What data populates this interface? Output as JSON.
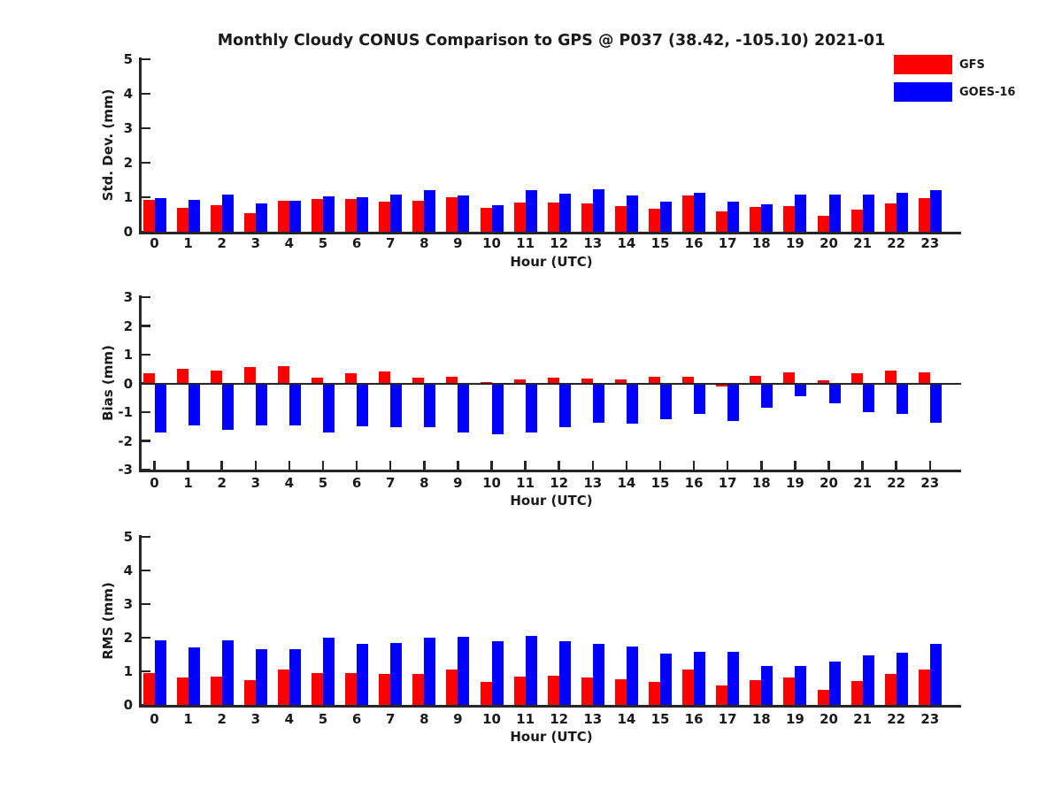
{
  "chart_data": {
    "type": "bar",
    "title": "Monthly Cloudy CONUS Comparison to GPS @ P037 (38.42, -105.10) 2021-01",
    "xlabel": "Hour (UTC)",
    "categories": [
      0,
      1,
      2,
      3,
      4,
      5,
      6,
      7,
      8,
      9,
      10,
      11,
      12,
      13,
      14,
      15,
      16,
      17,
      18,
      19,
      20,
      21,
      22,
      23
    ],
    "legend": {
      "position": "top-right",
      "entries": [
        {
          "name": "GFS",
          "color": "#ff0000"
        },
        {
          "name": "GOES-16",
          "color": "#0000ff"
        }
      ]
    },
    "panels": [
      {
        "ylabel": "Std. Dev. (mm)",
        "ylim": [
          0,
          5
        ],
        "yticks": [
          0,
          1,
          2,
          3,
          4,
          5
        ],
        "grid": false,
        "series": [
          {
            "name": "GFS",
            "color": "#ff0000",
            "values": [
              0.92,
              0.68,
              0.76,
              0.55,
              0.89,
              0.96,
              0.94,
              0.87,
              0.91,
              1.01,
              0.68,
              0.84,
              0.85,
              0.83,
              0.74,
              0.66,
              1.04,
              0.59,
              0.72,
              0.75,
              0.46,
              0.65,
              0.83,
              0.97
            ]
          },
          {
            "name": "GOES-16",
            "color": "#0000ff",
            "values": [
              0.98,
              0.93,
              1.07,
              0.81,
              0.89,
              1.03,
              1.0,
              1.08,
              1.21,
              1.05,
              0.78,
              1.21,
              1.1,
              1.22,
              1.04,
              0.88,
              1.14,
              0.88,
              0.8,
              1.08,
              1.08,
              1.07,
              1.14,
              1.2
            ]
          }
        ]
      },
      {
        "ylabel": "Bias (mm)",
        "ylim": [
          -3,
          3
        ],
        "yticks": [
          -3,
          -2,
          -1,
          0,
          1,
          2,
          3
        ],
        "grid": false,
        "zero_line": true,
        "series": [
          {
            "name": "GFS",
            "color": "#ff0000",
            "values": [
              0.35,
              0.5,
              0.45,
              0.57,
              0.6,
              0.2,
              0.35,
              0.43,
              0.2,
              0.22,
              0.04,
              0.15,
              0.19,
              0.17,
              0.15,
              0.23,
              0.22,
              -0.12,
              0.25,
              0.4,
              0.11,
              0.34,
              0.45,
              0.37
            ]
          },
          {
            "name": "GOES-16",
            "color": "#0000ff",
            "values": [
              -1.7,
              -1.45,
              -1.62,
              -1.45,
              -1.47,
              -1.72,
              -1.5,
              -1.53,
              -1.52,
              -1.7,
              -1.76,
              -1.7,
              -1.52,
              -1.36,
              -1.4,
              -1.26,
              -1.06,
              -1.31,
              -0.85,
              -0.45,
              -0.68,
              -1.0,
              -1.07,
              -1.37
            ]
          }
        ]
      },
      {
        "ylabel": "RMS (mm)",
        "ylim": [
          0,
          5
        ],
        "yticks": [
          0,
          1,
          2,
          3,
          4,
          5
        ],
        "grid": false,
        "series": [
          {
            "name": "GFS",
            "color": "#ff0000",
            "values": [
              0.96,
              0.82,
              0.84,
              0.75,
              1.04,
              0.96,
              0.96,
              0.91,
              0.91,
              1.04,
              0.68,
              0.84,
              0.86,
              0.82,
              0.76,
              0.68,
              1.04,
              0.58,
              0.75,
              0.82,
              0.45,
              0.71,
              0.91,
              1.04
            ]
          },
          {
            "name": "GOES-16",
            "color": "#0000ff",
            "values": [
              1.92,
              1.72,
              1.92,
              1.66,
              1.66,
              2.0,
              1.82,
              1.84,
              2.0,
              2.03,
              1.9,
              2.05,
              1.9,
              1.82,
              1.73,
              1.53,
              1.57,
              1.57,
              1.15,
              1.16,
              1.28,
              1.48,
              1.55,
              1.81
            ]
          }
        ]
      }
    ]
  }
}
